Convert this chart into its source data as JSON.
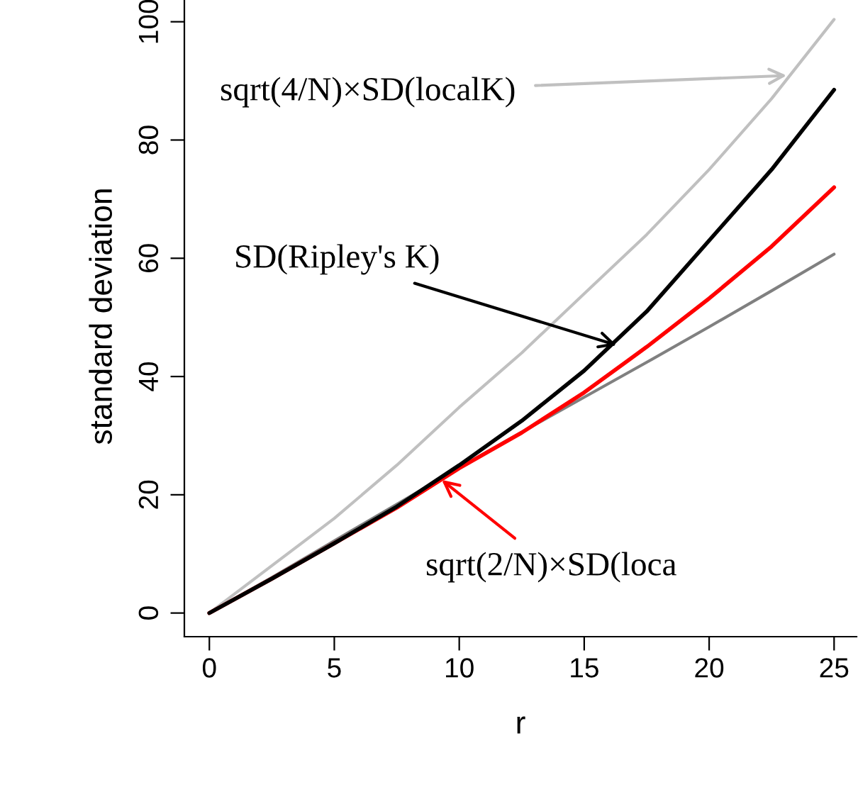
{
  "chart_data": {
    "type": "line",
    "xlabel": "r",
    "ylabel": "standard deviation",
    "x": [
      0,
      2.5,
      5,
      7.5,
      10,
      12.5,
      15,
      17.5,
      20,
      22.5,
      25
    ],
    "series": [
      {
        "color": "#c0c0c0",
        "values": [
          0,
          8,
          16,
          25,
          34.8,
          44,
          54,
          64,
          75,
          87,
          100.4
        ]
      },
      {
        "color": "#808080",
        "values": [
          0,
          6,
          12.2,
          18.4,
          24.6,
          30.6,
          36.5,
          42.4,
          48.4,
          54.5,
          60.7
        ]
      },
      {
        "color": "#ff0000",
        "values": [
          0,
          5.8,
          11.8,
          17.8,
          24.5,
          30.5,
          37.3,
          45,
          53.2,
          62,
          72
        ]
      },
      {
        "color": "#000000",
        "values": [
          0,
          5.8,
          11.8,
          18,
          25,
          32.5,
          41,
          51,
          63,
          75,
          88.5
        ]
      }
    ],
    "xlim": [
      -1,
      25.9
    ],
    "ylim": [
      -4,
      104.4
    ],
    "xticks": [
      0,
      5,
      10,
      15,
      20,
      25
    ],
    "yticks": [
      0,
      20,
      40,
      60,
      80,
      100
    ],
    "annotations": [
      {
        "text": "sqrt(4/N)×SD(localK)",
        "x": 23.1,
        "y": 90.9
      },
      {
        "text": "SD(Ripley's K)",
        "x": 16.3,
        "y": 45.3
      },
      {
        "text": "sqrt(2/N)×SD(loca",
        "x": 9.3,
        "y": 22.5
      }
    ],
    "grid": false,
    "legend": false
  }
}
